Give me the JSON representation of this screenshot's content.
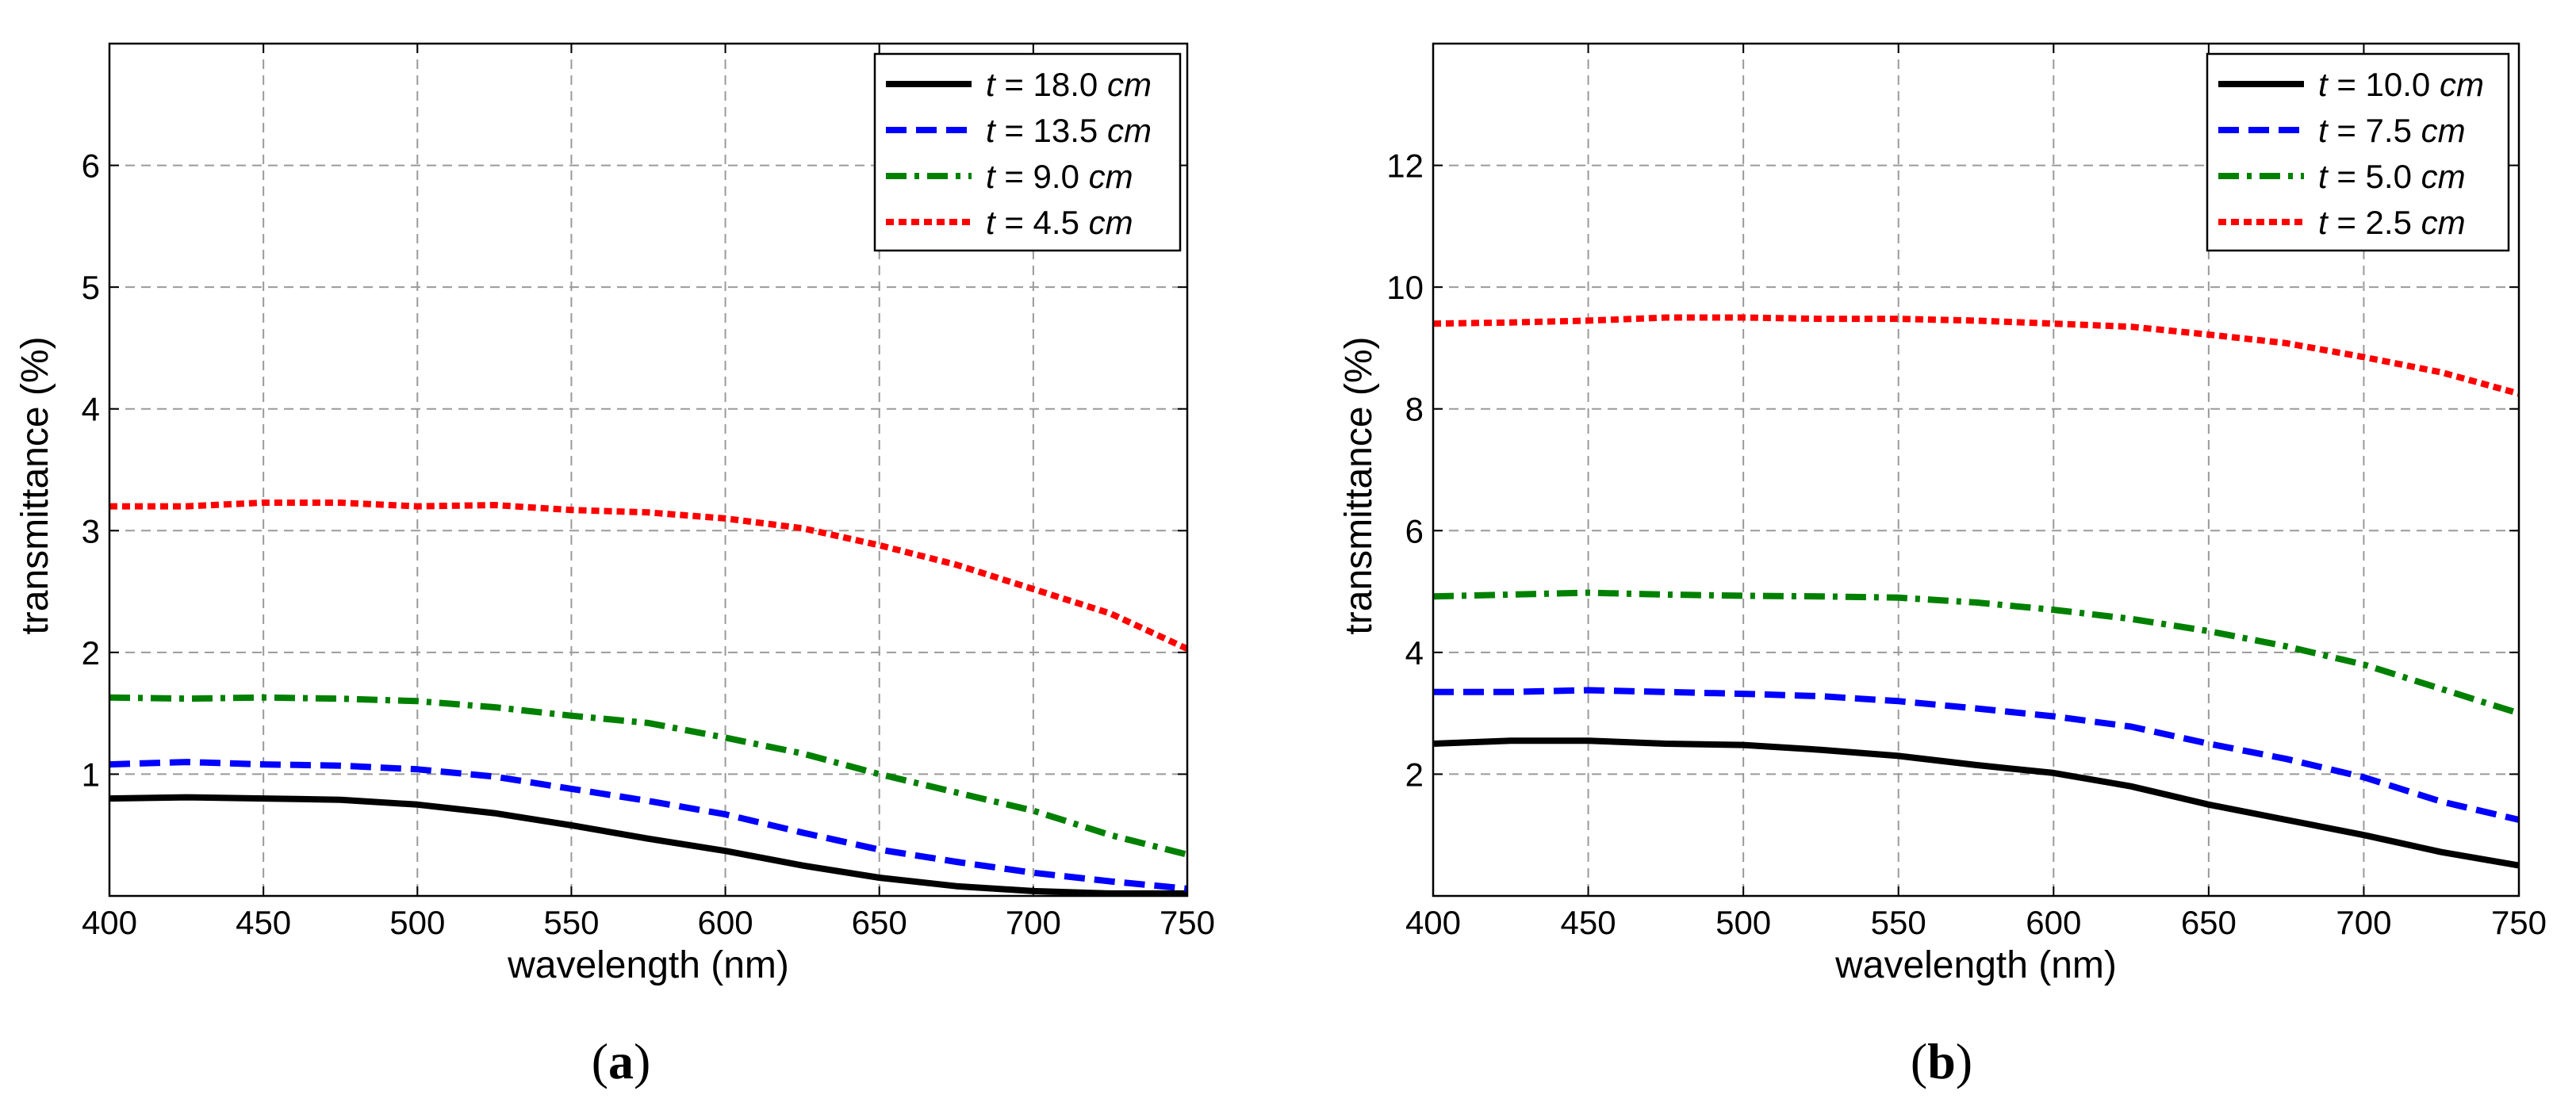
{
  "chart_data": [
    {
      "type": "line",
      "panel_label": "a",
      "xlabel": "wavelength (nm)",
      "ylabel": "transmittance (%)",
      "xlim": [
        400,
        750
      ],
      "ylim": [
        0,
        7
      ],
      "xticks": [
        400,
        450,
        500,
        550,
        600,
        650,
        700,
        750
      ],
      "yticks": [
        1,
        2,
        3,
        4,
        5,
        6
      ],
      "grid": true,
      "legend_position": "top-right",
      "x": [
        400,
        425,
        450,
        475,
        500,
        525,
        550,
        575,
        600,
        625,
        650,
        675,
        700,
        725,
        750
      ],
      "series": [
        {
          "name": "18.0",
          "style": "solid",
          "color": "#000000",
          "values": [
            0.8,
            0.81,
            0.8,
            0.79,
            0.75,
            0.68,
            0.58,
            0.47,
            0.37,
            0.25,
            0.15,
            0.08,
            0.04,
            0.02,
            0.02
          ]
        },
        {
          "name": "13.5",
          "style": "dashed",
          "color": "#0000ff",
          "values": [
            1.08,
            1.1,
            1.08,
            1.07,
            1.04,
            0.98,
            0.88,
            0.78,
            0.67,
            0.52,
            0.38,
            0.28,
            0.19,
            0.12,
            0.06
          ]
        },
        {
          "name": "9.0",
          "style": "dashdot",
          "color": "#008000",
          "values": [
            1.63,
            1.62,
            1.63,
            1.62,
            1.6,
            1.55,
            1.48,
            1.42,
            1.3,
            1.17,
            1.0,
            0.85,
            0.7,
            0.5,
            0.34
          ]
        },
        {
          "name": "4.5",
          "style": "dotted",
          "color": "#ff0000",
          "values": [
            3.2,
            3.2,
            3.23,
            3.23,
            3.2,
            3.21,
            3.17,
            3.15,
            3.1,
            3.02,
            2.88,
            2.72,
            2.52,
            2.32,
            2.03
          ]
        }
      ]
    },
    {
      "type": "line",
      "panel_label": "b",
      "xlabel": "wavelength (nm)",
      "ylabel": "transmittance (%)",
      "xlim": [
        400,
        750
      ],
      "ylim": [
        0,
        14
      ],
      "xticks": [
        400,
        450,
        500,
        550,
        600,
        650,
        700,
        750
      ],
      "yticks": [
        2,
        4,
        6,
        8,
        10,
        12
      ],
      "grid": true,
      "legend_position": "top-right",
      "x": [
        400,
        425,
        450,
        475,
        500,
        525,
        550,
        575,
        600,
        625,
        650,
        675,
        700,
        725,
        750
      ],
      "series": [
        {
          "name": "10.0",
          "style": "solid",
          "color": "#000000",
          "values": [
            2.5,
            2.55,
            2.55,
            2.5,
            2.48,
            2.4,
            2.3,
            2.15,
            2.02,
            1.8,
            1.5,
            1.25,
            1.0,
            0.72,
            0.5
          ]
        },
        {
          "name": "7.5",
          "style": "dashed",
          "color": "#0000ff",
          "values": [
            3.35,
            3.35,
            3.38,
            3.35,
            3.32,
            3.28,
            3.2,
            3.08,
            2.95,
            2.78,
            2.5,
            2.25,
            1.95,
            1.55,
            1.25
          ]
        },
        {
          "name": "5.0",
          "style": "dashdot",
          "color": "#008000",
          "values": [
            4.92,
            4.95,
            4.98,
            4.95,
            4.93,
            4.92,
            4.9,
            4.82,
            4.7,
            4.55,
            4.35,
            4.1,
            3.8,
            3.4,
            3.0
          ]
        },
        {
          "name": "2.5",
          "style": "dotted",
          "color": "#ff0000",
          "values": [
            9.4,
            9.42,
            9.45,
            9.5,
            9.5,
            9.48,
            9.48,
            9.45,
            9.4,
            9.35,
            9.22,
            9.08,
            8.85,
            8.6,
            8.25
          ]
        }
      ]
    }
  ],
  "legend_prefix": "t = ",
  "legend_unit": "cm"
}
